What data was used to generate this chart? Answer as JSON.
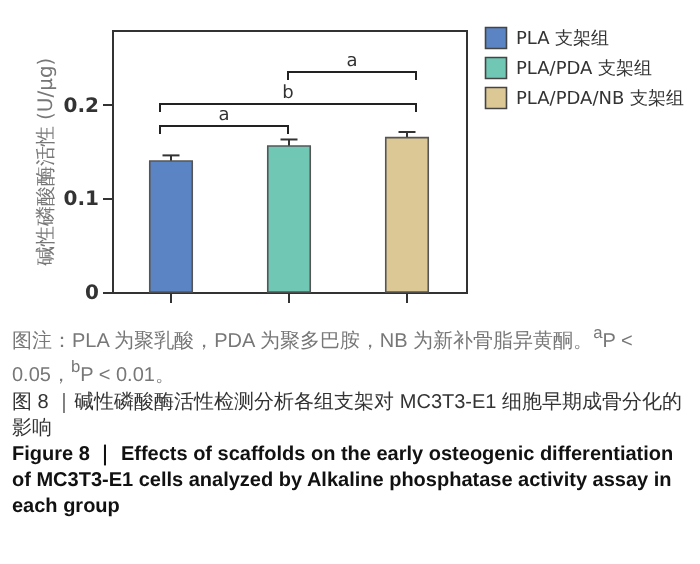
{
  "chart_data": {
    "type": "bar",
    "ylabel": "碱性磷酸酶活性 (U/μg)",
    "categories": [
      null,
      null,
      null
    ],
    "series": [
      {
        "name": "PLA 支架组",
        "color": "#5b84c4",
        "values": [
          0.14,
          null,
          null
        ],
        "errors": [
          0.006,
          null,
          null
        ]
      },
      {
        "name": "PLA/PDA 支架组",
        "color": "#6fc7b4",
        "values": [
          null,
          0.156,
          null
        ],
        "errors": [
          null,
          0.007,
          null
        ]
      },
      {
        "name": "PLA/PDA/NB 支架组",
        "color": "#dcc894",
        "values": [
          null,
          null,
          0.165
        ],
        "errors": [
          null,
          null,
          0.006
        ]
      }
    ],
    "ylim": [
      0,
      0.28
    ],
    "yticks": [
      0,
      0.1,
      0.2
    ],
    "stacked": true,
    "grid": false,
    "legend": "top right",
    "tick_labels": "y",
    "annotations": [
      "a",
      "b",
      "a",
      "图注：PLA 为聚乳酸，PDA 为聚多巴胺，NB 为新补骨脂异黄酮。$^{a}$P < 0.05，$^{b}$P < 0.01。",
      "图 8 ｜碱性磷酸酶活性检测分析各组支架对 MC3T3-E1 细胞早期成骨分化的影响",
      "Figure 8 ｜ Effects of scaffolds on the early osteogenic differentiation of MC3T3-E1 cells analyzed by Alkaline phosphatase activity assay in each group"
    ]
  }
}
